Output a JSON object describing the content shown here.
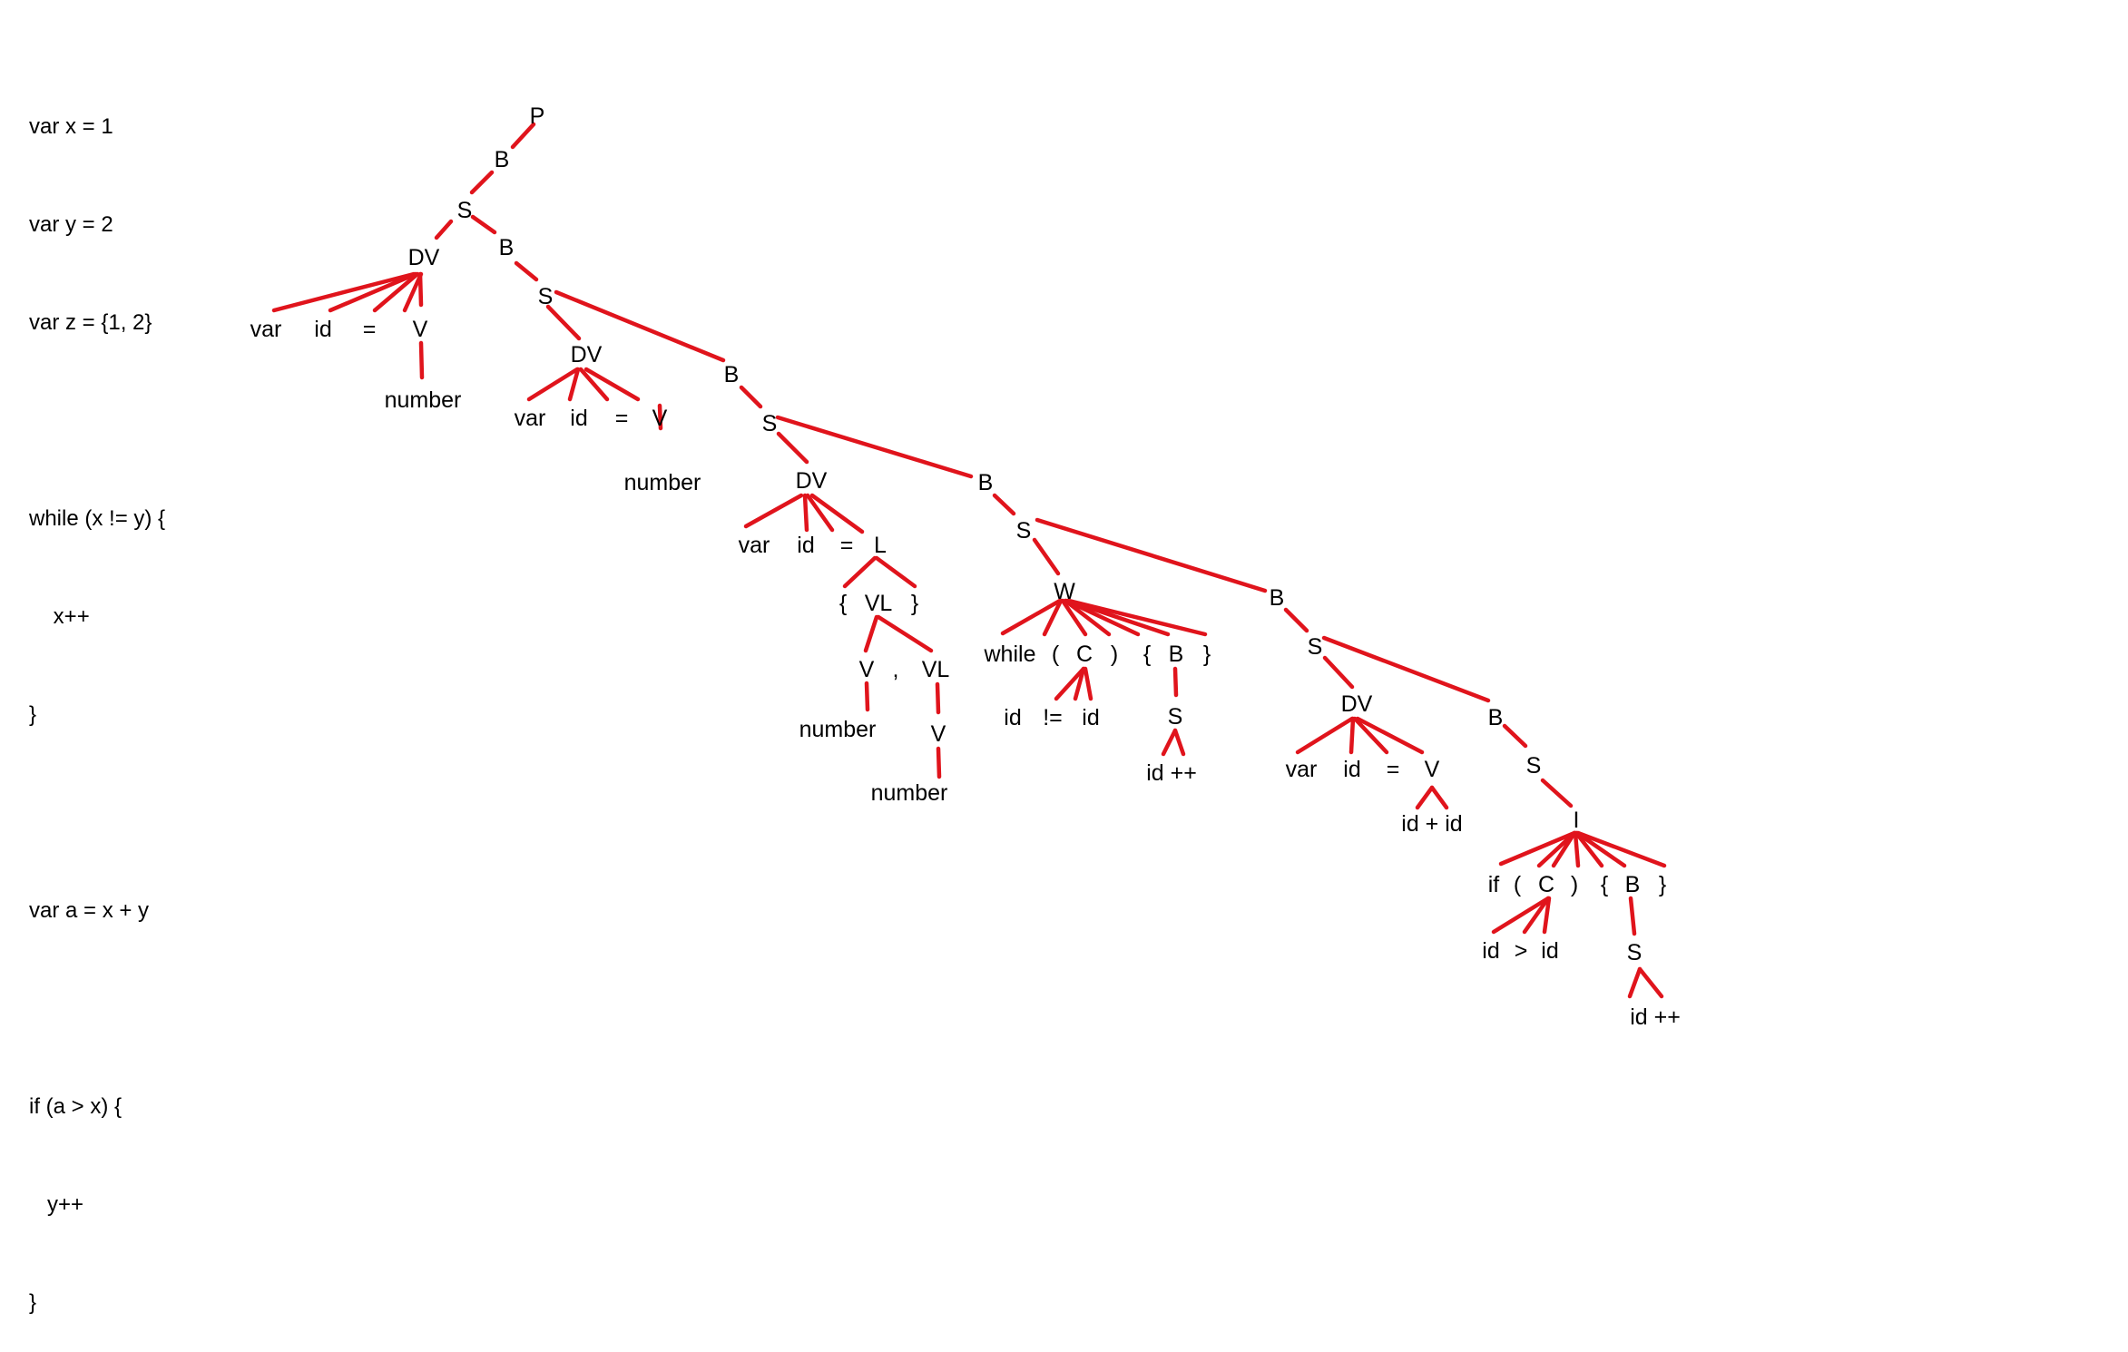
{
  "source_code": [
    "var x = 1",
    "var y = 2",
    "var z = {1, 2}",
    "",
    "while (x != y) {",
    "    x++",
    "}",
    "",
    "var a = x + y",
    "",
    "if (a > x) {",
    "   y++",
    "}"
  ],
  "edge_color": "#e0141c",
  "tree_labels": {
    "n1": "P",
    "n2": "B",
    "n3": "S",
    "n4": "DV",
    "n5": "var",
    "n6": "id",
    "n7": "=",
    "n8": "V",
    "n9": "number",
    "n10": "B",
    "n11": "S",
    "n12": "DV",
    "n13": "var",
    "n14": "id",
    "n15": "=",
    "n16": "V",
    "n17": "number",
    "n18": "B",
    "n19": "S",
    "n20": "DV",
    "n21": "var",
    "n22": "id",
    "n23": "=",
    "n24": "L",
    "n25": "{",
    "n26": "VL",
    "n27": "}",
    "n28": "V",
    "n29": ",",
    "n30": "VL",
    "n31": "number",
    "n32": "V",
    "n33": "number",
    "n34": "B",
    "n35": "S",
    "n36": "W",
    "n37": "while",
    "n38": "(",
    "n39": "C",
    "n40": ")",
    "n41": "{",
    "n42": "B",
    "n43": "}",
    "n44": "id",
    "n45": "!=",
    "n46": "id",
    "n47": "S",
    "n48": "id ++",
    "n49": "B",
    "n50": "S",
    "n51": "DV",
    "n52": "var",
    "n53": "id",
    "n54": "=",
    "n55": "V",
    "n56": "id + id",
    "n57": "B",
    "n58": "S",
    "n59": "I",
    "n60": "if",
    "n61": "(",
    "n62": "C",
    "n63": ")",
    "n64": "{",
    "n65": "B",
    "n66": "}",
    "n67": "id",
    "n68": ">",
    "n69": "id",
    "n70": "S",
    "n71": "id ++"
  }
}
